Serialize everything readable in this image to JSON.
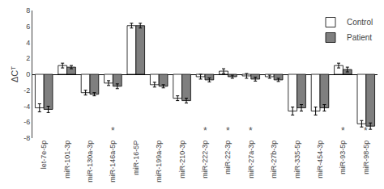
{
  "chart_data": {
    "type": "bar",
    "categories": [
      "let-7e-5p",
      "miR-101-3p",
      "miR-130a-3p",
      "miR-146a-5p",
      "miR-16-5P",
      "miR-199a-3p",
      "miR-210-3p",
      "miR-222-3p",
      "miR-22-3p",
      "miR-27a-3p",
      "miR-27b-3p",
      "miR-335-5p",
      "miR-454-3p",
      "miR-93-5p",
      "miR-98-5p"
    ],
    "series": [
      {
        "name": "Control",
        "color": "#ffffff",
        "values": [
          -4.2,
          1.1,
          -2.3,
          -1.1,
          6.1,
          -1.3,
          -3.0,
          -0.3,
          0.4,
          -0.2,
          -0.3,
          -4.6,
          -4.6,
          1.1,
          -6.2
        ],
        "errors": [
          0.5,
          0.3,
          0.3,
          0.3,
          0.3,
          0.3,
          0.3,
          0.3,
          0.3,
          0.3,
          0.2,
          0.5,
          0.5,
          0.3,
          0.4
        ]
      },
      {
        "name": "Patient",
        "color": "#7f7f7f",
        "values": [
          -4.4,
          0.9,
          -2.5,
          -1.5,
          6.1,
          -1.5,
          -3.3,
          -0.7,
          -0.3,
          -0.6,
          -0.7,
          -4.2,
          -4.2,
          0.6,
          -6.5
        ],
        "errors": [
          0.4,
          0.2,
          0.2,
          0.3,
          0.3,
          0.2,
          0.3,
          0.25,
          0.2,
          0.25,
          0.2,
          0.4,
          0.4,
          0.3,
          0.4
        ]
      }
    ],
    "ylabel": "ΔCᵀ",
    "ylim": [
      -8,
      8
    ],
    "yticks": [
      -8,
      -6,
      -4,
      -2,
      0,
      2,
      4,
      6,
      8
    ],
    "grid": false,
    "legend": "upper right",
    "annotations": [
      {
        "text": "*",
        "category": "miR-146a-5p",
        "color": "#555555"
      },
      {
        "text": "*",
        "category": "miR-222-3p",
        "color": "#555555"
      },
      {
        "text": "*",
        "category": "miR-22-3p",
        "color": "#555555"
      },
      {
        "text": "*",
        "category": "miR-27a-3p",
        "color": "#555555"
      },
      {
        "text": "*",
        "category": "miR-93-5p",
        "color": "#555555"
      },
      {
        "text": "*",
        "category": "miR-98-5p",
        "color": "#555555"
      }
    ]
  }
}
